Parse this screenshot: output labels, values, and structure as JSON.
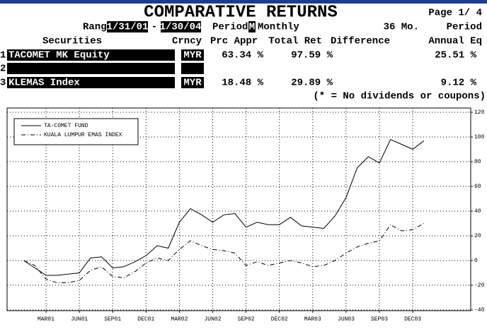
{
  "header": {
    "title": "COMPARATIVE RETURNS",
    "page": "Page 1/ 4",
    "range_label": "Range",
    "start": "1/31/01",
    "dash": "-",
    "end": "1/30/04",
    "period_label": "Period",
    "period_code": "M",
    "period": "Monthly",
    "months": "36 Mo.",
    "period2": "Period"
  },
  "table": {
    "columns": [
      "Securities",
      "Crncy",
      "Prc Appr",
      "Total Ret",
      "Difference",
      "Annual Eq"
    ],
    "rows": [
      {
        "num": "1",
        "security": "TACOMET MK Equity",
        "currency": "MYR",
        "prc_appr": "63.34 %",
        "total_ret": "97.59 %",
        "annual_eq": "25.51 %"
      },
      {
        "num": "2"
      },
      {
        "num": "3",
        "security": "KLEMAS Index",
        "currency": "MYR",
        "prc_appr": "18.48 %",
        "total_ret": "29.89 %",
        "annual_eq": "9.12 %"
      }
    ],
    "note": "(* = No dividends or coupons)"
  },
  "chart_data": {
    "type": "line",
    "categories": [
      null,
      null,
      "MAR01",
      null,
      null,
      "JUN01",
      null,
      null,
      "SEP01",
      null,
      null,
      "DEC01",
      null,
      null,
      "MAR02",
      null,
      null,
      "JUN02",
      null,
      null,
      "SEP02",
      null,
      null,
      "DEC02",
      null,
      null,
      "MAR03",
      null,
      null,
      "JUN03",
      null,
      null,
      "SEP03",
      null,
      null,
      "DEC03",
      null
    ],
    "series": [
      {
        "name": "TA-COMET FUND",
        "color": "#000000",
        "dash": "solid",
        "values": [
          0,
          -6,
          -12,
          -12,
          -11,
          -10,
          2,
          3,
          -6,
          -5,
          -1,
          4,
          12,
          10,
          31,
          42,
          37,
          31,
          37,
          38,
          27,
          31,
          29,
          29,
          35,
          28,
          27,
          26,
          36,
          51,
          75,
          84,
          79,
          98,
          94,
          90,
          97
        ]
      },
      {
        "name": "KUALA LUMPUR EMAS INDEX",
        "color": "#000000",
        "dash": "dash-dot",
        "values": [
          0,
          -4,
          -15,
          -18,
          -18,
          -16,
          -8,
          -5,
          -13,
          -14,
          -9,
          -2,
          2,
          0,
          9,
          16,
          12,
          9,
          8,
          6,
          -4,
          -1,
          -4,
          -2,
          0,
          -2,
          -5,
          -4,
          0,
          6,
          11,
          14,
          16,
          29,
          24,
          25,
          30
        ]
      }
    ],
    "ylim": [
      -40,
      120
    ],
    "yticks": [
      -40,
      -20,
      0,
      20,
      40,
      60,
      80,
      100,
      120
    ],
    "y_axis_side": "right",
    "grid": true,
    "legend": "upper left"
  }
}
